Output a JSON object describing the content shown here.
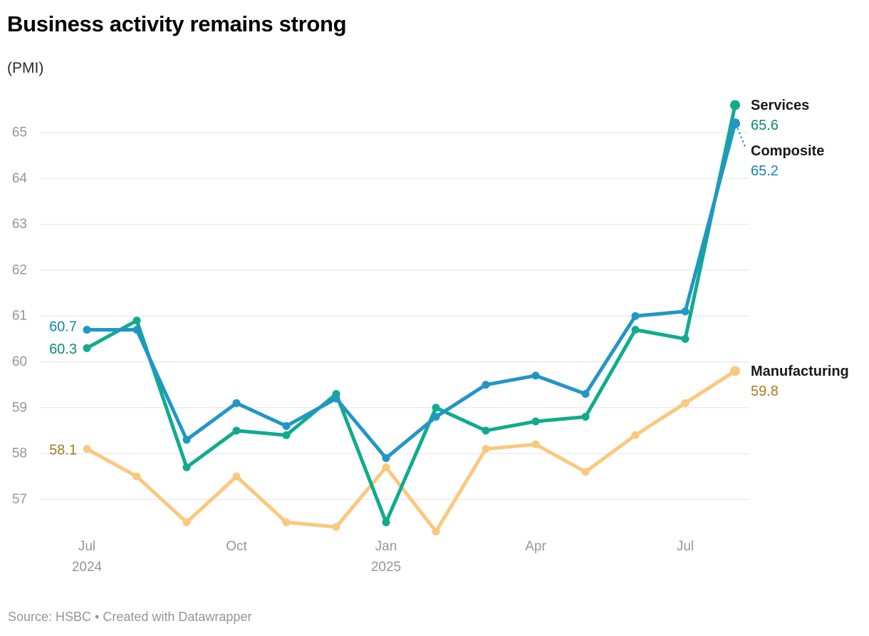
{
  "header": {
    "title": "Business activity remains strong",
    "subtitle": "(PMI)"
  },
  "footer": {
    "source": "Source: HSBC • Created with Datawrapper"
  },
  "chart_data": {
    "type": "line",
    "title": "Business activity remains strong",
    "subtitle": "(PMI)",
    "x": [
      "Jul 2024",
      "Aug 2024",
      "Sep 2024",
      "Oct 2024",
      "Nov 2024",
      "Dec 2024",
      "Jan 2025",
      "Feb 2025",
      "Mar 2025",
      "Apr 2025",
      "May 2025",
      "Jun 2025",
      "Jul 2025",
      "Aug 2025"
    ],
    "series": [
      {
        "name": "Services",
        "line_color": "#10ab8d",
        "text_color": "#0d8a70",
        "values": [
          60.3,
          60.9,
          57.7,
          58.5,
          58.4,
          59.3,
          56.5,
          59.0,
          58.5,
          58.7,
          58.8,
          60.7,
          60.5,
          65.6
        ],
        "start_label": "60.3",
        "end_label": "65.6"
      },
      {
        "name": "Composite",
        "line_color": "#2196c7",
        "text_color": "#1583ad",
        "values": [
          60.7,
          60.7,
          58.3,
          59.1,
          58.6,
          59.2,
          57.9,
          58.8,
          59.5,
          59.7,
          59.3,
          61.0,
          61.1,
          65.2
        ],
        "start_label": "60.7",
        "end_label": "65.2"
      },
      {
        "name": "Manufacturing",
        "line_color": "#fac87e",
        "text_color": "#a67d1e",
        "values": [
          58.1,
          57.5,
          56.5,
          57.5,
          56.5,
          56.4,
          57.7,
          56.3,
          58.1,
          58.2,
          57.6,
          58.4,
          59.1,
          59.8
        ],
        "start_label": "58.1",
        "end_label": "59.8"
      }
    ],
    "y_ticks": [
      57,
      58,
      59,
      60,
      61,
      62,
      63,
      64,
      65
    ],
    "x_ticks": [
      {
        "index": 0,
        "line1": "Jul",
        "line2": "2024"
      },
      {
        "index": 3,
        "line1": "Oct",
        "line2": ""
      },
      {
        "index": 6,
        "line1": "Jan",
        "line2": "2025"
      },
      {
        "index": 9,
        "line1": "Apr",
        "line2": ""
      },
      {
        "index": 12,
        "line1": "Jul",
        "line2": ""
      }
    ],
    "ylim": [
      56.1,
      65.8
    ],
    "grid": "horizontal-only",
    "legend_position": "end-of-line-labels",
    "label_text_color": "#1a1a1a",
    "tick_text_color": "#969696",
    "gridline_color": "#e4e4e4"
  }
}
